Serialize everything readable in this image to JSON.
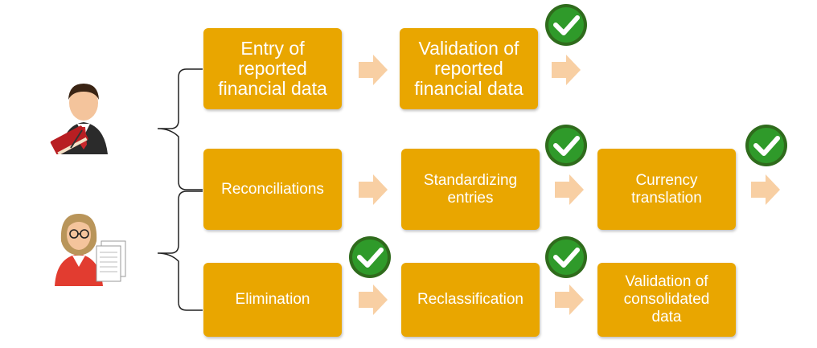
{
  "steps": {
    "entry": "Entry of\nreported\nfinancial data",
    "validation_reported": "Validation of\nreported\nfinancial data",
    "reconciliations": "Reconciliations",
    "standardizing": "Standardizing\nentries",
    "currency": "Currency\ntranslation",
    "elimination": "Elimination",
    "reclassification": "Reclassification",
    "validation_consolidated": "Validation of\nconsolidated\ndata"
  },
  "icons": {
    "check": "green-check-icon",
    "arrow": "right-arrow-icon",
    "user_top": "businessman-with-book-icon",
    "user_bottom": "woman-with-documents-icon"
  },
  "colors": {
    "box": "#e9a600",
    "arrow": "#f8cfa3",
    "check_ring": "#2f6b1c",
    "check_fill": "#2f9a2a"
  }
}
